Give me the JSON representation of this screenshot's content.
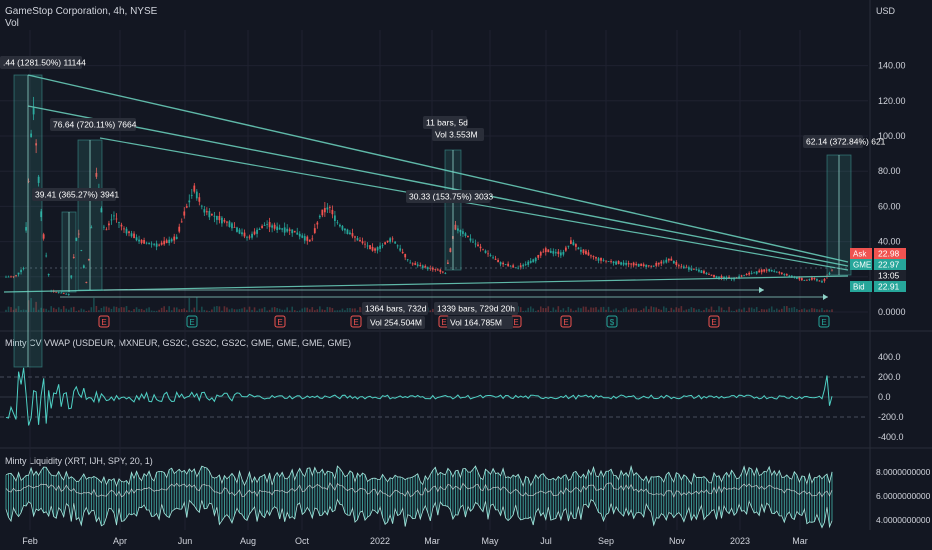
{
  "header": {
    "title": "GameStop Corporation, 4h, NYSE",
    "vol_label": "Vol",
    "currency": "USD"
  },
  "chart_data": [
    {
      "type": "candlestick",
      "title": "GameStop Corporation, 4h, NYSE",
      "y_axis_ticks": [
        "140.00",
        "120.00",
        "100.00",
        "80.00",
        "60.00",
        "40.00",
        "20.00",
        "0.0000"
      ],
      "ylim": [
        0,
        150
      ],
      "x_ticks": [
        "Feb",
        "Apr",
        "Jun",
        "Aug",
        "Oct",
        "2022",
        "Mar",
        "May",
        "Jul",
        "Sep",
        "Nov",
        "2023",
        "Mar"
      ],
      "close_path": [
        {
          "x": 0.01,
          "y": 20
        },
        {
          "x": 0.02,
          "y": 25
        },
        {
          "x": 0.03,
          "y": 120
        },
        {
          "x": 0.04,
          "y": 50
        },
        {
          "x": 0.05,
          "y": 12
        },
        {
          "x": 0.07,
          "y": 10
        },
        {
          "x": 0.08,
          "y": 48
        },
        {
          "x": 0.09,
          "y": 15
        },
        {
          "x": 0.1,
          "y": 80
        },
        {
          "x": 0.11,
          "y": 45
        },
        {
          "x": 0.12,
          "y": 55
        },
        {
          "x": 0.13,
          "y": 48
        },
        {
          "x": 0.15,
          "y": 40
        },
        {
          "x": 0.17,
          "y": 38
        },
        {
          "x": 0.19,
          "y": 42
        },
        {
          "x": 0.2,
          "y": 58
        },
        {
          "x": 0.21,
          "y": 70
        },
        {
          "x": 0.22,
          "y": 58
        },
        {
          "x": 0.23,
          "y": 55
        },
        {
          "x": 0.25,
          "y": 50
        },
        {
          "x": 0.27,
          "y": 42
        },
        {
          "x": 0.29,
          "y": 50
        },
        {
          "x": 0.3,
          "y": 48
        },
        {
          "x": 0.32,
          "y": 46
        },
        {
          "x": 0.34,
          "y": 40
        },
        {
          "x": 0.35,
          "y": 55
        },
        {
          "x": 0.36,
          "y": 60
        },
        {
          "x": 0.37,
          "y": 50
        },
        {
          "x": 0.39,
          "y": 42
        },
        {
          "x": 0.41,
          "y": 35
        },
        {
          "x": 0.42,
          "y": 38
        },
        {
          "x": 0.43,
          "y": 42
        },
        {
          "x": 0.45,
          "y": 28
        },
        {
          "x": 0.47,
          "y": 25
        },
        {
          "x": 0.48,
          "y": 24
        },
        {
          "x": 0.49,
          "y": 22
        },
        {
          "x": 0.5,
          "y": 48
        },
        {
          "x": 0.51,
          "y": 45
        },
        {
          "x": 0.52,
          "y": 40
        },
        {
          "x": 0.54,
          "y": 32
        },
        {
          "x": 0.55,
          "y": 28
        },
        {
          "x": 0.57,
          "y": 25
        },
        {
          "x": 0.59,
          "y": 30
        },
        {
          "x": 0.6,
          "y": 35
        },
        {
          "x": 0.62,
          "y": 33
        },
        {
          "x": 0.63,
          "y": 40
        },
        {
          "x": 0.64,
          "y": 35
        },
        {
          "x": 0.66,
          "y": 30
        },
        {
          "x": 0.68,
          "y": 28
        },
        {
          "x": 0.7,
          "y": 27
        },
        {
          "x": 0.72,
          "y": 26
        },
        {
          "x": 0.74,
          "y": 30
        },
        {
          "x": 0.75,
          "y": 26
        },
        {
          "x": 0.77,
          "y": 24
        },
        {
          "x": 0.79,
          "y": 20
        },
        {
          "x": 0.81,
          "y": 19
        },
        {
          "x": 0.83,
          "y": 22
        },
        {
          "x": 0.85,
          "y": 24
        },
        {
          "x": 0.87,
          "y": 21
        },
        {
          "x": 0.89,
          "y": 18
        },
        {
          "x": 0.9,
          "y": 19
        },
        {
          "x": 0.91,
          "y": 17
        },
        {
          "x": 0.92,
          "y": 24
        }
      ],
      "annotations": [
        ".44 (1281.50%) 11144",
        "76.64 (720.11%) 7664",
        "39.41 (365.27%) 3941",
        "11 bars, 5d",
        "Vol 3.553M",
        "30.33 (153.75%) 3033",
        "62.14 (372.84%) 621",
        "1364 bars, 732d",
        "Vol 254.504M",
        "1339 bars, 729d 20h",
        "Vol 164.785M"
      ],
      "price_labels": [
        {
          "name": "Ask",
          "value": "22.98"
        },
        {
          "name": "GME",
          "value": "22.97"
        },
        {
          "name": "",
          "value": "13:05"
        },
        {
          "name": "Bid",
          "value": "22.91"
        }
      ],
      "event_markers": [
        "E",
        "E",
        "E",
        "E",
        "E",
        "E",
        "E",
        "$",
        "E",
        "E",
        "E"
      ]
    },
    {
      "type": "line",
      "title": "Minty CV VWAP (USDEUR, MXNEUR, GS2C, GS2C, GS2C, GME, GME, GME, GME)",
      "y_axis_ticks": [
        "400.0",
        "200.0",
        "0.0",
        "-200.0",
        "-400.0"
      ],
      "ylim": [
        -450,
        450
      ]
    },
    {
      "type": "area",
      "title": "Minty Liquidity (XRT, IJH, SPY, 20, 1)",
      "y_axis_ticks": [
        "8.0000000000",
        "6.0000000000",
        "4.0000000000"
      ],
      "ylim": [
        3.5,
        8.5
      ]
    }
  ],
  "colors": {
    "background": "#131722",
    "grid": "#1f2230",
    "up": "#26a69a",
    "down": "#ef5350",
    "teal": "#4fd1c5",
    "trendline": "#5fb8a8",
    "label_bg": "#2a2e39"
  }
}
